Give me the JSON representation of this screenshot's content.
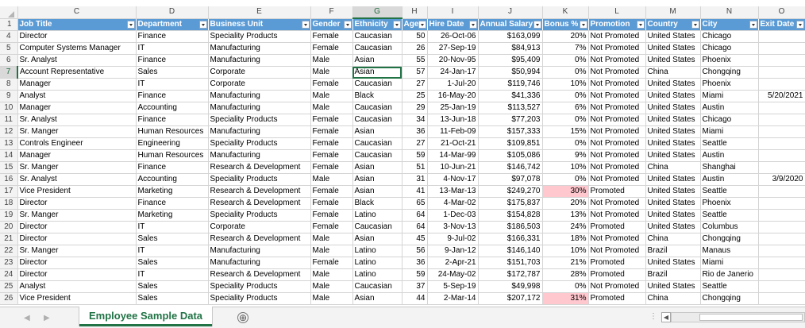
{
  "columns": [
    "C",
    "D",
    "E",
    "F",
    "G",
    "H",
    "I",
    "J",
    "K",
    "L",
    "M",
    "N",
    "O"
  ],
  "selected_column": "G",
  "selected_row": "7",
  "headers": [
    "Job Title",
    "Department",
    "Business Unit",
    "Gender",
    "Ethnicity",
    "Age",
    "Hire Date",
    "Annual Salary",
    "Bonus %",
    "Promotion",
    "Country",
    "City",
    "Exit Date"
  ],
  "header_row_number": "1",
  "rows": [
    {
      "n": "4",
      "c": [
        "Director",
        "Finance",
        "Speciality Products",
        "Female",
        "Caucasian",
        "50",
        "26-Oct-06",
        "$163,099",
        "20%",
        "Not Promoted",
        "United States",
        "Chicago",
        ""
      ]
    },
    {
      "n": "5",
      "c": [
        "Computer Systems Manager",
        "IT",
        "Manufacturing",
        "Female",
        "Caucasian",
        "26",
        "27-Sep-19",
        "$84,913",
        "7%",
        "Not Promoted",
        "United States",
        "Chicago",
        ""
      ]
    },
    {
      "n": "6",
      "c": [
        "Sr. Analyst",
        "Finance",
        "Manufacturing",
        "Male",
        "Asian",
        "55",
        "20-Nov-95",
        "$95,409",
        "0%",
        "Not Promoted",
        "United States",
        "Phoenix",
        ""
      ]
    },
    {
      "n": "7",
      "c": [
        "Account Representative",
        "Sales",
        "Corporate",
        "Male",
        "Asian",
        "57",
        "24-Jan-17",
        "$50,994",
        "0%",
        "Not Promoted",
        "China",
        "Chongqing",
        ""
      ]
    },
    {
      "n": "8",
      "c": [
        "Manager",
        "IT",
        "Corporate",
        "Female",
        "Caucasian",
        "27",
        "1-Jul-20",
        "$119,746",
        "10%",
        "Not Promoted",
        "United States",
        "Phoenix",
        ""
      ]
    },
    {
      "n": "9",
      "c": [
        "Analyst",
        "Finance",
        "Manufacturing",
        "Male",
        "Black",
        "25",
        "16-May-20",
        "$41,336",
        "0%",
        "Not Promoted",
        "United States",
        "Miami",
        "5/20/2021"
      ]
    },
    {
      "n": "10",
      "c": [
        "Manager",
        "Accounting",
        "Manufacturing",
        "Male",
        "Caucasian",
        "29",
        "25-Jan-19",
        "$113,527",
        "6%",
        "Not Promoted",
        "United States",
        "Austin",
        ""
      ]
    },
    {
      "n": "11",
      "c": [
        "Sr. Analyst",
        "Finance",
        "Speciality Products",
        "Female",
        "Caucasian",
        "34",
        "13-Jun-18",
        "$77,203",
        "0%",
        "Not Promoted",
        "United States",
        "Chicago",
        ""
      ]
    },
    {
      "n": "12",
      "c": [
        "Sr. Manger",
        "Human Resources",
        "Manufacturing",
        "Female",
        "Asian",
        "36",
        "11-Feb-09",
        "$157,333",
        "15%",
        "Not Promoted",
        "United States",
        "Miami",
        ""
      ]
    },
    {
      "n": "13",
      "c": [
        "Controls Engineer",
        "Engineering",
        "Speciality Products",
        "Female",
        "Caucasian",
        "27",
        "21-Oct-21",
        "$109,851",
        "0%",
        "Not Promoted",
        "United States",
        "Seattle",
        ""
      ]
    },
    {
      "n": "14",
      "c": [
        "Manager",
        "Human Resources",
        "Manufacturing",
        "Female",
        "Caucasian",
        "59",
        "14-Mar-99",
        "$105,086",
        "9%",
        "Not Promoted",
        "United States",
        "Austin",
        ""
      ]
    },
    {
      "n": "15",
      "c": [
        "Sr. Manger",
        "Finance",
        "Research & Development",
        "Female",
        "Asian",
        "51",
        "10-Jun-21",
        "$146,742",
        "10%",
        "Not Promoted",
        "China",
        "Shanghai",
        ""
      ]
    },
    {
      "n": "16",
      "c": [
        "Sr. Analyst",
        "Accounting",
        "Speciality Products",
        "Male",
        "Asian",
        "31",
        "4-Nov-17",
        "$97,078",
        "0%",
        "Not Promoted",
        "United States",
        "Austin",
        "3/9/2020"
      ]
    },
    {
      "n": "17",
      "c": [
        "Vice President",
        "Marketing",
        "Research & Development",
        "Female",
        "Asian",
        "41",
        "13-Mar-13",
        "$249,270",
        "30%",
        "Promoted",
        "United States",
        "Seattle",
        ""
      ]
    },
    {
      "n": "18",
      "c": [
        "Director",
        "Finance",
        "Research & Development",
        "Female",
        "Black",
        "65",
        "4-Mar-02",
        "$175,837",
        "20%",
        "Not Promoted",
        "United States",
        "Phoenix",
        ""
      ]
    },
    {
      "n": "19",
      "c": [
        "Sr. Manger",
        "Marketing",
        "Speciality Products",
        "Female",
        "Latino",
        "64",
        "1-Dec-03",
        "$154,828",
        "13%",
        "Not Promoted",
        "United States",
        "Seattle",
        ""
      ]
    },
    {
      "n": "20",
      "c": [
        "Director",
        "IT",
        "Corporate",
        "Female",
        "Caucasian",
        "64",
        "3-Nov-13",
        "$186,503",
        "24%",
        "Promoted",
        "United States",
        "Columbus",
        ""
      ]
    },
    {
      "n": "21",
      "c": [
        "Director",
        "Sales",
        "Research & Development",
        "Male",
        "Asian",
        "45",
        "9-Jul-02",
        "$166,331",
        "18%",
        "Not Promoted",
        "China",
        "Chongqing",
        ""
      ]
    },
    {
      "n": "22",
      "c": [
        "Sr. Manger",
        "IT",
        "Manufacturing",
        "Male",
        "Latino",
        "56",
        "9-Jan-12",
        "$146,140",
        "10%",
        "Not Promoted",
        "Brazil",
        "Manaus",
        ""
      ]
    },
    {
      "n": "23",
      "c": [
        "Director",
        "Sales",
        "Manufacturing",
        "Female",
        "Latino",
        "36",
        "2-Apr-21",
        "$151,703",
        "21%",
        "Promoted",
        "United States",
        "Miami",
        ""
      ]
    },
    {
      "n": "24",
      "c": [
        "Director",
        "IT",
        "Research & Development",
        "Male",
        "Latino",
        "59",
        "24-May-02",
        "$172,787",
        "28%",
        "Promoted",
        "Brazil",
        "Rio de Janerio",
        ""
      ]
    },
    {
      "n": "25",
      "c": [
        "Analyst",
        "Sales",
        "Speciality Products",
        "Male",
        "Caucasian",
        "37",
        "5-Sep-19",
        "$49,998",
        "0%",
        "Not Promoted",
        "United States",
        "Seattle",
        ""
      ]
    },
    {
      "n": "26",
      "c": [
        "Vice President",
        "Sales",
        "Speciality Products",
        "Male",
        "Asian",
        "44",
        "2-Mar-14",
        "$207,172",
        "31%",
        "Promoted",
        "China",
        "Chongqing",
        ""
      ]
    }
  ],
  "highlighted_bonus": [
    "30%",
    "31%"
  ],
  "highlight_color": "#ffc7ce",
  "header_fill_color": "#5b9bd5",
  "accent_color": "#217346",
  "sheet_tab": {
    "label": "Employee Sample Data"
  },
  "add_sheet_icon": "⊕",
  "icons": {
    "filter": "filter-dropdown-icon",
    "select_all": "select-all-triangle-icon",
    "sheet_nav_prev": "chevron-left-icon",
    "sheet_nav_next": "chevron-right-icon",
    "add_sheet": "plus-circle-icon",
    "options": "vertical-dots-icon",
    "scroll_left": "scroll-left-arrow-icon"
  }
}
